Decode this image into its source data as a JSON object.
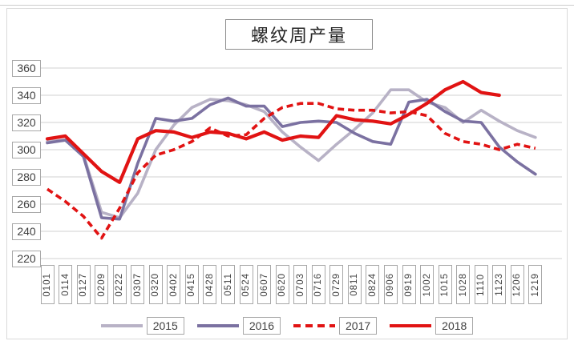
{
  "page": {
    "kind": "article-embedded-chart"
  },
  "colors": {
    "grid": "#d9d9d9",
    "frame_border": "#d9d9d9",
    "divider": "#cccccc",
    "tick_box_border": "#a8a8a8",
    "axis_text": "#404040",
    "series_2015": "#b8b2c6",
    "series_2016": "#7b71a1",
    "series_red": "#e11313"
  },
  "chart_data": {
    "type": "line",
    "title": "螺纹周产量",
    "xlabel": "",
    "ylabel": "",
    "ylim": [
      220,
      360
    ],
    "yticks": [
      220,
      240,
      260,
      280,
      300,
      320,
      340,
      360
    ],
    "grid": "horizontal",
    "legend_position": "bottom",
    "categories": [
      "0101",
      "0114",
      "0127",
      "0209",
      "0222",
      "0307",
      "0320",
      "0402",
      "0415",
      "0428",
      "0511",
      "0524",
      "0607",
      "0620",
      "0703",
      "0716",
      "0729",
      "0811",
      "0824",
      "0906",
      "0919",
      "1002",
      "1015",
      "1028",
      "1110",
      "1123",
      "1206",
      "1219"
    ],
    "series": [
      {
        "name": "2015",
        "color": "#b8b2c6",
        "style": "solid",
        "width": 3.6,
        "values": [
          306,
          307,
          296,
          254,
          250,
          268,
          300,
          318,
          331,
          337,
          336,
          333,
          328,
          313,
          302,
          292,
          304,
          315,
          327,
          344,
          344,
          335,
          331,
          320,
          329,
          321,
          314,
          309
        ]
      },
      {
        "name": "2016",
        "color": "#7b71a1",
        "style": "solid",
        "width": 3.6,
        "values": [
          305,
          307,
          295,
          250,
          249,
          290,
          323,
          321,
          323,
          333,
          338,
          332,
          332,
          317,
          320,
          321,
          320,
          312,
          306,
          304,
          335,
          337,
          328,
          321,
          320,
          302,
          291,
          282
        ]
      },
      {
        "name": "2017",
        "color": "#e11313",
        "style": "dashed",
        "width": 3.6,
        "values": [
          271,
          262,
          251,
          235,
          257,
          283,
          296,
          300,
          306,
          316,
          310,
          311,
          323,
          331,
          334,
          334,
          330,
          329,
          329,
          327,
          328,
          325,
          312,
          306,
          304,
          300,
          304,
          301
        ]
      },
      {
        "name": "2018",
        "color": "#e11313",
        "style": "solid",
        "width": 4.2,
        "values": [
          308,
          310,
          297,
          284,
          276,
          308,
          314,
          313,
          309,
          313,
          312,
          308,
          313,
          307,
          310,
          309,
          325,
          322,
          321,
          319,
          326,
          334,
          344,
          350,
          342,
          340,
          null,
          null
        ]
      }
    ]
  }
}
